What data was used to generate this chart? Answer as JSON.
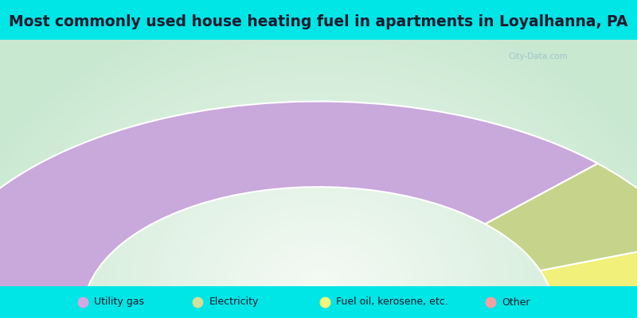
{
  "title": "Most commonly used house heating fuel in apartments in Loyalhanna, PA",
  "segments": [
    {
      "label": "Utility gas",
      "value": 75.0,
      "color": "#c9a8dc"
    },
    {
      "label": "Electricity",
      "value": 14.0,
      "color": "#c5d48a"
    },
    {
      "label": "Fuel oil, kerosene, etc.",
      "value": 11.0,
      "color": "#f0f07a"
    },
    {
      "label": "Other",
      "value": 0.0,
      "color": "#f4a0a0"
    }
  ],
  "bg_cyan": "#00e5e5",
  "bg_chart_center": "#f5faf5",
  "bg_chart_edge": "#c8e8d0",
  "legend_marker_colors": [
    "#d4a8e0",
    "#d4df9a",
    "#f5f57a",
    "#f4a0a0"
  ],
  "title_color": "#1a1a2e",
  "title_fontsize": 13.5,
  "watermark": "City-Data.com"
}
